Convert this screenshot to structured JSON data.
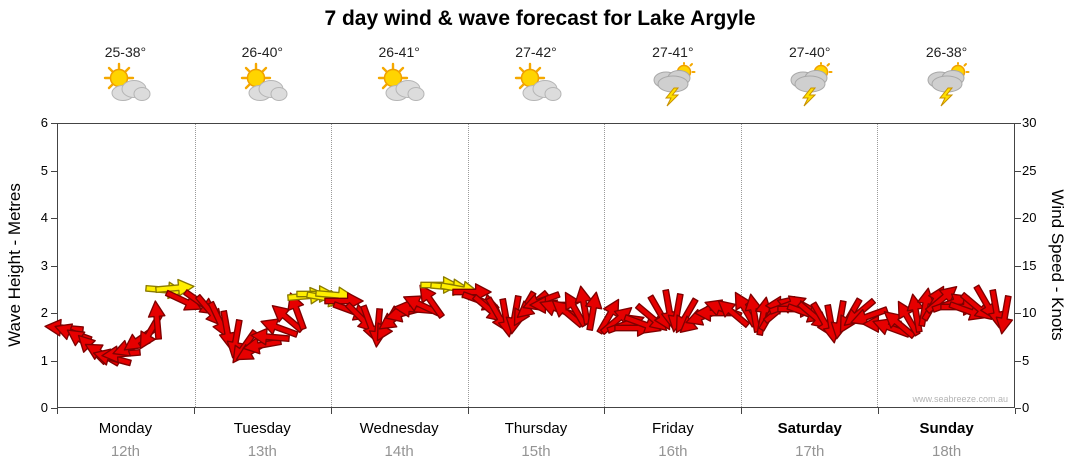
{
  "title": "7 day wind & wave forecast for Lake Argyle",
  "watermark": "www.seabreeze.com.au",
  "axes": {
    "left_label": "Wave Height - Metres",
    "right_label": "Wind Speed - Knots"
  },
  "chart_data": {
    "type": "wind-arrow-timeseries",
    "title": "7 day wind & wave forecast for Lake Argyle",
    "y_left": {
      "label": "Wave Height - Metres",
      "min": 0,
      "max": 6,
      "ticks": [
        0,
        1,
        2,
        3,
        4,
        5,
        6
      ]
    },
    "y_right": {
      "label": "Wind Speed - Knots",
      "min": 0,
      "max": 30,
      "ticks": [
        0,
        5,
        10,
        15,
        20,
        25,
        30
      ]
    },
    "grid": {
      "horizontal": false,
      "vertical_day_separators": true
    },
    "days": [
      {
        "weekday": "Monday",
        "date": "12th",
        "temp": "25-38°",
        "icon": "sun-cloud"
      },
      {
        "weekday": "Tuesday",
        "date": "13th",
        "temp": "26-40°",
        "icon": "sun-cloud"
      },
      {
        "weekday": "Wednesday",
        "date": "14th",
        "temp": "26-41°",
        "icon": "sun-cloud"
      },
      {
        "weekday": "Thursday",
        "date": "15th",
        "temp": "27-42°",
        "icon": "sun-cloud"
      },
      {
        "weekday": "Friday",
        "date": "16th",
        "temp": "27-41°",
        "icon": "storm"
      },
      {
        "weekday": "Saturday",
        "date": "17th",
        "temp": "27-40°",
        "icon": "storm"
      },
      {
        "weekday": "Sunday",
        "date": "18th",
        "temp": "26-38°",
        "icon": "storm"
      }
    ],
    "bold_days": [
      "Saturday",
      "Sunday"
    ],
    "colors": {
      "red_fill": "#e60000",
      "red_stroke": "#7f0000",
      "yellow_fill": "#ffee00",
      "yellow_stroke": "#8a7a00"
    },
    "arrow_columns": [
      "x_fraction",
      "wind_knots",
      "direction_deg",
      "color"
    ],
    "arrows": [
      [
        0.006,
        8.4,
        185,
        "red"
      ],
      [
        0.016,
        7.8,
        200,
        "red"
      ],
      [
        0.026,
        7.0,
        215,
        "red"
      ],
      [
        0.036,
        6.2,
        225,
        "red"
      ],
      [
        0.046,
        5.6,
        210,
        "red"
      ],
      [
        0.056,
        5.2,
        195,
        "red"
      ],
      [
        0.066,
        5.6,
        175,
        "red"
      ],
      [
        0.076,
        6.4,
        160,
        "red"
      ],
      [
        0.086,
        7.2,
        145,
        "red"
      ],
      [
        0.096,
        8.0,
        120,
        "red"
      ],
      [
        0.104,
        9.2,
        265,
        "red"
      ],
      [
        0.112,
        12.4,
        5,
        "yellow"
      ],
      [
        0.122,
        12.6,
        355,
        "yellow"
      ],
      [
        0.132,
        11.2,
        25,
        "red"
      ],
      [
        0.15,
        11.0,
        35,
        "red"
      ],
      [
        0.159,
        10.2,
        50,
        "red"
      ],
      [
        0.168,
        9.2,
        65,
        "red"
      ],
      [
        0.177,
        8.2,
        80,
        "red"
      ],
      [
        0.186,
        7.2,
        100,
        "red"
      ],
      [
        0.195,
        6.4,
        125,
        "red"
      ],
      [
        0.204,
        6.0,
        150,
        "red"
      ],
      [
        0.213,
        6.6,
        170,
        "red"
      ],
      [
        0.222,
        7.4,
        185,
        "red"
      ],
      [
        0.231,
        8.4,
        200,
        "red"
      ],
      [
        0.24,
        9.4,
        220,
        "red"
      ],
      [
        0.25,
        10.2,
        250,
        "red"
      ],
      [
        0.26,
        11.8,
        355,
        "yellow"
      ],
      [
        0.27,
        12.0,
        0,
        "yellow"
      ],
      [
        0.28,
        11.6,
        10,
        "yellow"
      ],
      [
        0.29,
        11.9,
        5,
        "yellow"
      ],
      [
        0.299,
        11.2,
        0,
        "red"
      ],
      [
        0.308,
        10.2,
        20,
        "red"
      ],
      [
        0.317,
        9.4,
        45,
        "red"
      ],
      [
        0.326,
        8.8,
        70,
        "red"
      ],
      [
        0.335,
        8.4,
        95,
        "red"
      ],
      [
        0.344,
        8.8,
        120,
        "red"
      ],
      [
        0.353,
        9.4,
        145,
        "red"
      ],
      [
        0.362,
        10.0,
        165,
        "red"
      ],
      [
        0.371,
        10.4,
        185,
        "red"
      ],
      [
        0.38,
        10.8,
        205,
        "red"
      ],
      [
        0.39,
        11.2,
        235,
        "red"
      ],
      [
        0.4,
        12.9,
        0,
        "yellow"
      ],
      [
        0.41,
        12.7,
        5,
        "yellow"
      ],
      [
        0.42,
        12.5,
        10,
        "yellow"
      ],
      [
        0.433,
        12.2,
        0,
        "red"
      ],
      [
        0.442,
        11.2,
        20,
        "red"
      ],
      [
        0.451,
        10.4,
        40,
        "red"
      ],
      [
        0.46,
        9.8,
        60,
        "red"
      ],
      [
        0.469,
        9.4,
        80,
        "red"
      ],
      [
        0.478,
        9.8,
        100,
        "red"
      ],
      [
        0.487,
        10.4,
        120,
        "red"
      ],
      [
        0.496,
        10.8,
        140,
        "red"
      ],
      [
        0.505,
        11.2,
        160,
        "red"
      ],
      [
        0.514,
        10.8,
        180,
        "red"
      ],
      [
        0.523,
        10.4,
        200,
        "red"
      ],
      [
        0.532,
        10.0,
        220,
        "red"
      ],
      [
        0.541,
        10.4,
        240,
        "red"
      ],
      [
        0.55,
        10.8,
        260,
        "red"
      ],
      [
        0.56,
        10.2,
        280,
        "red"
      ],
      [
        0.576,
        9.6,
        300,
        "red"
      ],
      [
        0.585,
        9.2,
        320,
        "red"
      ],
      [
        0.594,
        8.8,
        340,
        "red"
      ],
      [
        0.603,
        8.4,
        0,
        "red"
      ],
      [
        0.612,
        8.8,
        20,
        "red"
      ],
      [
        0.621,
        9.4,
        40,
        "red"
      ],
      [
        0.63,
        10.0,
        60,
        "red"
      ],
      [
        0.639,
        10.4,
        80,
        "red"
      ],
      [
        0.648,
        10.0,
        100,
        "red"
      ],
      [
        0.657,
        9.6,
        120,
        "red"
      ],
      [
        0.666,
        9.2,
        140,
        "red"
      ],
      [
        0.676,
        9.6,
        160,
        "red"
      ],
      [
        0.686,
        10.0,
        180,
        "red"
      ],
      [
        0.696,
        10.4,
        200,
        "red"
      ],
      [
        0.706,
        10.0,
        220,
        "red"
      ],
      [
        0.719,
        10.4,
        240,
        "red"
      ],
      [
        0.728,
        10.0,
        260,
        "red"
      ],
      [
        0.737,
        9.6,
        280,
        "red"
      ],
      [
        0.746,
        10.0,
        300,
        "red"
      ],
      [
        0.755,
        10.4,
        320,
        "red"
      ],
      [
        0.764,
        10.8,
        340,
        "red"
      ],
      [
        0.773,
        10.4,
        0,
        "red"
      ],
      [
        0.782,
        10.0,
        20,
        "red"
      ],
      [
        0.791,
        9.6,
        40,
        "red"
      ],
      [
        0.8,
        9.2,
        60,
        "red"
      ],
      [
        0.809,
        8.8,
        80,
        "red"
      ],
      [
        0.818,
        9.2,
        100,
        "red"
      ],
      [
        0.828,
        9.6,
        120,
        "red"
      ],
      [
        0.838,
        10.0,
        140,
        "red"
      ],
      [
        0.848,
        9.6,
        160,
        "red"
      ],
      [
        0.862,
        8.8,
        180,
        "red"
      ],
      [
        0.871,
        8.4,
        200,
        "red"
      ],
      [
        0.88,
        8.8,
        220,
        "red"
      ],
      [
        0.889,
        9.4,
        240,
        "red"
      ],
      [
        0.898,
        10.0,
        260,
        "red"
      ],
      [
        0.907,
        10.6,
        280,
        "red"
      ],
      [
        0.916,
        11.0,
        300,
        "red"
      ],
      [
        0.925,
        11.4,
        320,
        "red"
      ],
      [
        0.934,
        11.0,
        340,
        "red"
      ],
      [
        0.943,
        10.6,
        0,
        "red"
      ],
      [
        0.952,
        10.2,
        20,
        "red"
      ],
      [
        0.961,
        10.6,
        40,
        "red"
      ],
      [
        0.971,
        11.0,
        60,
        "red"
      ],
      [
        0.981,
        10.4,
        80,
        "red"
      ],
      [
        0.991,
        9.8,
        100,
        "red"
      ]
    ]
  }
}
